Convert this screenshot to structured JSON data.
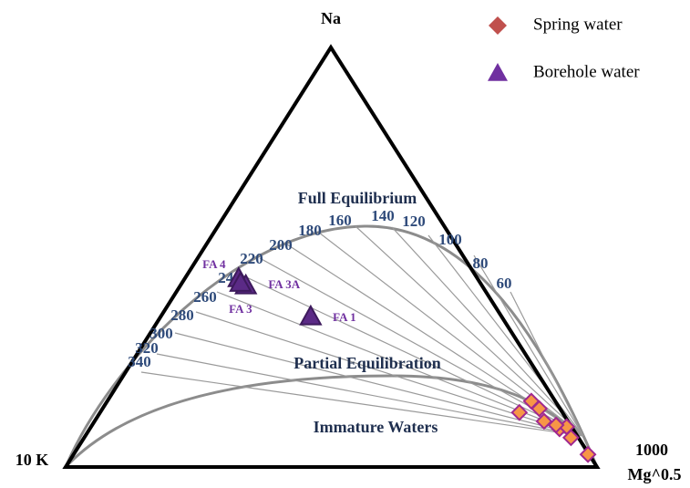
{
  "chart_data": {
    "type": "ternary",
    "axes": {
      "top": "Na",
      "left": "10 K",
      "right": [
        "1000",
        "Mg^0.5"
      ]
    },
    "regions": [
      "Full Equilibrium",
      "Partial Equilibration",
      "Immature Waters"
    ],
    "isotherm_labels": [
      60,
      80,
      100,
      120,
      140,
      160,
      180,
      200,
      220,
      240,
      260,
      280,
      300,
      320,
      340
    ],
    "legend": "top-right",
    "series": [
      {
        "name": "Spring water",
        "color": "#c0504d",
        "fill": "#f79646",
        "edge": "#a0288f",
        "marker": "diamond",
        "values": [
          [
            4.5,
            15.7,
            79.8
          ],
          [
            8.1,
            13,
            78.9
          ],
          [
            3.9,
            13.9,
            82.2
          ],
          [
            4.5,
            10.9,
            84.6
          ],
          [
            2.5,
            9.1,
            88.4
          ],
          [
            0.9,
            9.6,
            89.5
          ],
          [
            1.4,
            7,
            91.6
          ],
          [
            0.2,
            3,
            96.8
          ],
          [
            2.7,
            10,
            87.3
          ]
        ]
      },
      {
        "name": "Borehole water",
        "color": "#7030a0",
        "fill": "#5b2a86",
        "edge": "#3d1a5c",
        "marker": "triangle",
        "labels": [
          "FA 4",
          "FA 3A",
          "FA 3",
          "FA 1"
        ],
        "values": [
          [
            44.9,
            45,
            10.1
          ],
          [
            44.4,
            43.3,
            12.3
          ],
          [
            45.1,
            43.9,
            11
          ],
          [
            35.9,
            35.9,
            28.2
          ]
        ]
      }
    ]
  }
}
